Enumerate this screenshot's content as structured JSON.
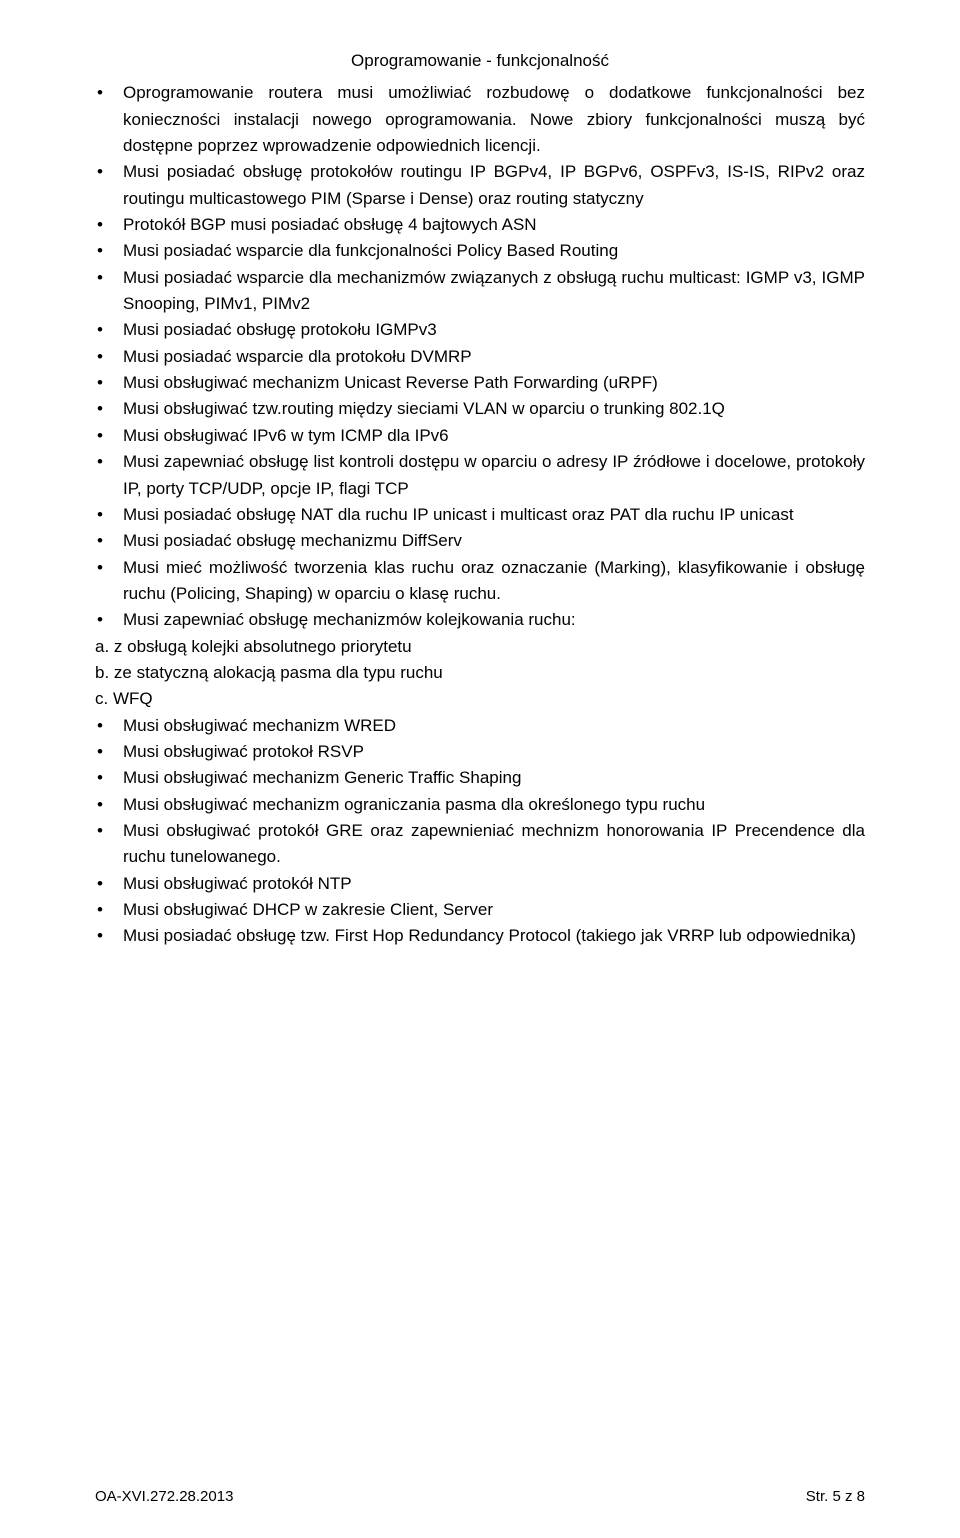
{
  "section_title": "Oprogramowanie - funkcjonalność",
  "bullets": [
    "Oprogramowanie routera musi umożliwiać rozbudowę o dodatkowe funkcjonalności bez konieczności instalacji nowego oprogramowania. Nowe zbiory funkcjonalności muszą być dostępne poprzez wprowadzenie odpowiednich licencji.",
    "Musi posiadać obsługę protokołów routingu IP BGPv4, IP BGPv6, OSPFv3, IS-IS, RIPv2 oraz routingu multicastowego PIM (Sparse i Dense) oraz routing statyczny",
    "Protokół BGP musi posiadać obsługę 4 bajtowych ASN",
    "Musi posiadać wsparcie dla funkcjonalności Policy Based Routing",
    "Musi posiadać wsparcie dla mechanizmów związanych z obsługą ruchu multicast: IGMP v3, IGMP Snooping, PIMv1, PIMv2",
    "Musi posiadać obsługę protokołu IGMPv3",
    "Musi posiadać wsparcie dla protokołu DVMRP",
    "Musi obsługiwać mechanizm Unicast Reverse Path Forwarding (uRPF)",
    "Musi obsługiwać tzw.routing między sieciami VLAN w oparciu o trunking 802.1Q",
    "Musi obsługiwać IPv6 w tym ICMP dla IPv6",
    "Musi zapewniać obsługę list kontroli dostępu w oparciu o adresy IP źródłowe i docelowe, protokoły IP, porty TCP/UDP, opcje IP, flagi TCP",
    "Musi posiadać obsługę NAT dla ruchu IP unicast i multicast oraz PAT dla ruchu IP unicast",
    "Musi posiadać obsługę mechanizmu DiffServ",
    "Musi mieć możliwość tworzenia klas ruchu oraz oznaczanie (Marking), klasyfikowanie i obsługę ruchu (Policing, Shaping) w oparciu o klasę ruchu.",
    "Musi zapewniać obsługę mechanizmów kolejkowania ruchu:"
  ],
  "sub_items": [
    "a.  z obsługą kolejki absolutnego priorytetu",
    "b.  ze statyczną alokacją pasma dla typu ruchu",
    "c.  WFQ"
  ],
  "bullets_after": [
    "Musi obsługiwać mechanizm WRED",
    "Musi obsługiwać protokoł RSVP",
    "Musi obsługiwać mechanizm Generic Traffic Shaping",
    "Musi obsługiwać mechanizm ograniczania pasma dla określonego typu ruchu",
    "Musi obsługiwać protokół GRE oraz zapewnieniać mechnizm honorowania IP Precendence dla ruchu tunelowanego.",
    "Musi obsługiwać protokół  NTP",
    "Musi obsługiwać DHCP w zakresie Client, Server",
    "Musi posiadać obsługę tzw. First Hop Redundancy Protocol (takiego jak VRRP lub odpowiednika)"
  ],
  "footer_left": "OA-XVI.272.28.2013",
  "footer_right": "Str. 5 z 8",
  "colors": {
    "text": "#000000",
    "background": "#ffffff"
  },
  "typography": {
    "body_fontsize": 17,
    "footer_fontsize": 15,
    "font_family": "Arial"
  }
}
